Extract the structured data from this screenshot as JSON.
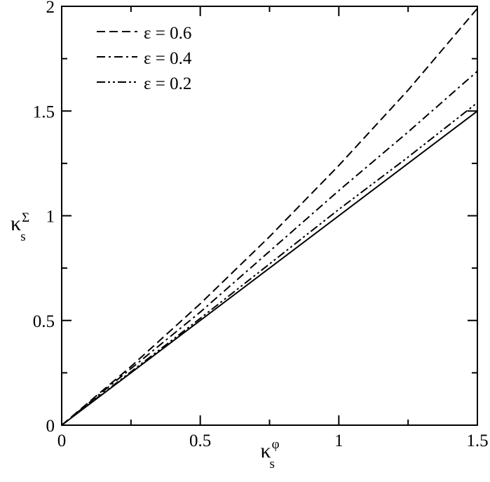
{
  "chart_data": {
    "type": "line",
    "title": "",
    "xlabel": {
      "base": "κ",
      "sub": "s",
      "sup": "φ"
    },
    "ylabel": {
      "base": "κ",
      "sub": "s",
      "sup": "Σ"
    },
    "xlim": [
      0,
      1.5
    ],
    "ylim": [
      0,
      2
    ],
    "xticks": [
      "0",
      "0.5",
      "1",
      "1.5"
    ],
    "yticks": [
      "0",
      "0.5",
      "1",
      "1.5",
      "2"
    ],
    "grid": false,
    "legend_position": "top-left",
    "series": [
      {
        "name": "ε = 0.6",
        "dash": "dashed",
        "x": [
          0,
          0.25,
          0.5,
          0.75,
          1.0,
          1.25,
          1.5
        ],
        "y": [
          0,
          0.28,
          0.58,
          0.9,
          1.24,
          1.6,
          1.99
        ]
      },
      {
        "name": "ε = 0.4",
        "dash": "dash-dot",
        "x": [
          0,
          0.25,
          0.5,
          0.75,
          1.0,
          1.25,
          1.5
        ],
        "y": [
          0,
          0.27,
          0.54,
          0.83,
          1.12,
          1.4,
          1.69
        ]
      },
      {
        "name": "ε = 0.2",
        "dash": "dash-dot-dot",
        "x": [
          0,
          0.25,
          0.5,
          0.75,
          1.0,
          1.25,
          1.5
        ],
        "y": [
          0,
          0.255,
          0.51,
          0.77,
          1.03,
          1.28,
          1.54
        ]
      },
      {
        "name": "",
        "dash": "solid",
        "x": [
          0,
          1.5
        ],
        "y": [
          0,
          1.5
        ]
      }
    ]
  }
}
